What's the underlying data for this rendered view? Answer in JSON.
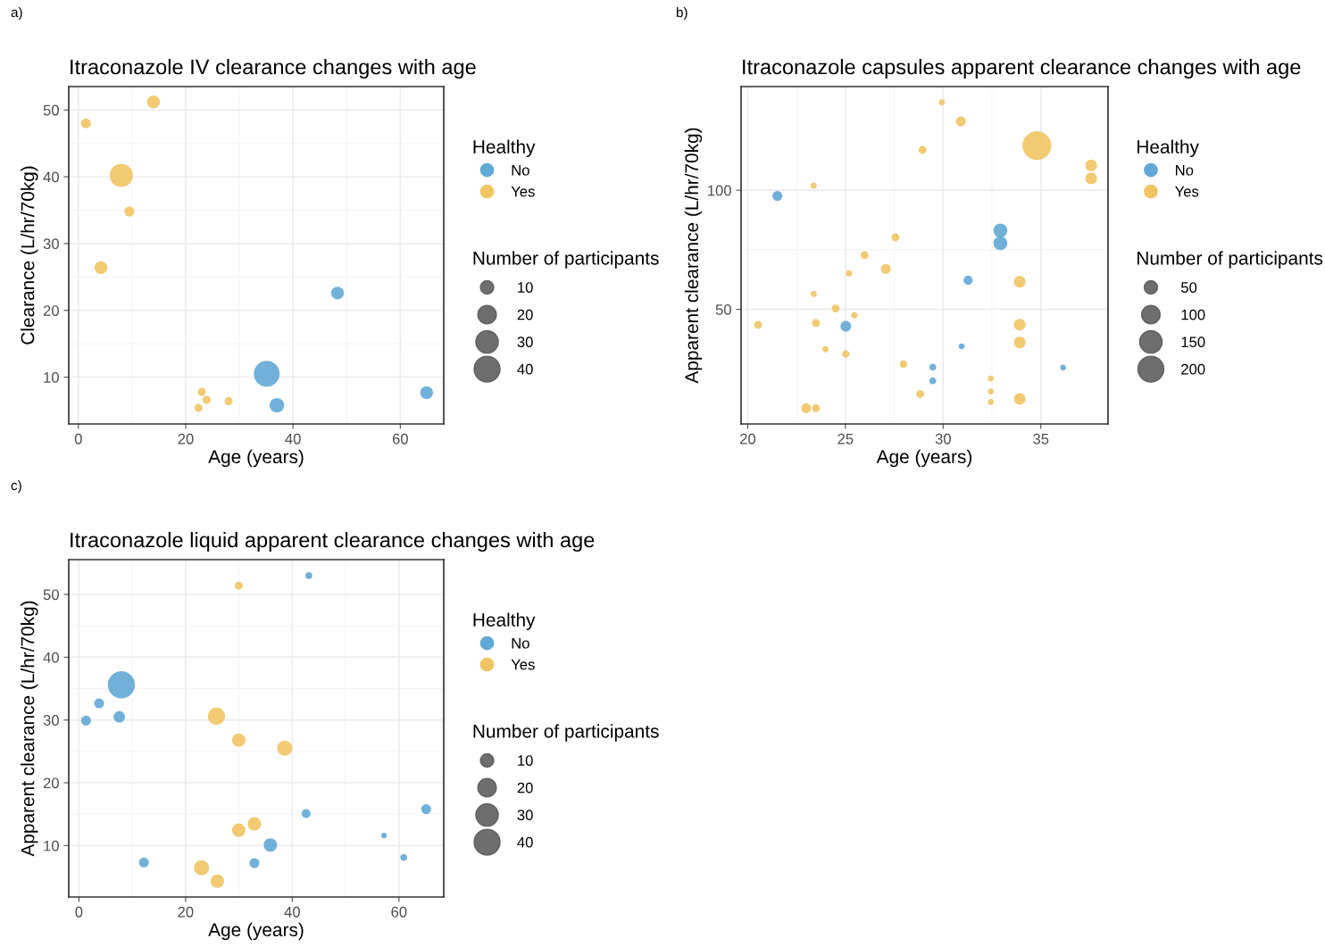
{
  "chart_data": [
    {
      "type": "bubble",
      "title": "Itraconazole IV clearance changes with age",
      "xlabel": "Age (years)",
      "ylabel": "Clearance (L/hr/70kg)",
      "legend_title": "Healthy",
      "annotations": [
        "a)",
        "Number of participants"
      ],
      "xlim": [
        -1.8,
        68.1
      ],
      "ylim": [
        3.0,
        53.5
      ],
      "xticks": [
        0,
        20,
        40,
        60
      ],
      "yticks": [
        10,
        20,
        30,
        40,
        50
      ],
      "grid": true,
      "legend": "right",
      "marker": "circle",
      "size_legend": [
        10,
        20,
        30,
        40
      ],
      "series": [
        {
          "name": "No",
          "color": "#62a9d5",
          "x": [
            48.3,
            35.1,
            37.0,
            64.9
          ],
          "values": [
            22.6,
            10.5,
            5.8,
            7.7
          ],
          "sizes": [
            9,
            40,
            12,
            9
          ]
        },
        {
          "name": "Yes",
          "color": "#f0c463",
          "x": [
            1.4,
            14.0,
            8.0,
            9.5,
            4.2,
            23.0,
            23.9,
            22.4,
            28.0
          ],
          "values": [
            48.0,
            51.2,
            40.2,
            34.8,
            26.4,
            7.8,
            6.6,
            5.4,
            6.4
          ],
          "sizes": [
            5,
            9,
            32,
            5,
            9,
            3,
            3,
            3,
            3
          ]
        }
      ]
    },
    {
      "type": "bubble",
      "title": "Itraconazole capsules apparent clearance changes with age",
      "xlabel": "Age (years)",
      "ylabel": "Apparent clearance (L/hr/70kg)",
      "legend_title": "Healthy",
      "annotations": [
        "b)",
        "Number of participants"
      ],
      "xlim": [
        19.66,
        38.44
      ],
      "ylim": [
        1.9,
        143.5
      ],
      "xticks": [
        20,
        25,
        30,
        35
      ],
      "yticks": [
        50,
        100
      ],
      "grid": true,
      "legend": "right",
      "marker": "circle",
      "size_legend": [
        50,
        100,
        150,
        200
      ],
      "series": [
        {
          "name": "No",
          "color": "#62a9d5",
          "x": [
            21.52,
            32.93,
            32.93,
            31.28,
            25.02,
            30.95,
            29.47,
            29.47,
            36.14
          ],
          "values": [
            97.6,
            83.1,
            77.75,
            62.25,
            42.9,
            34.5,
            25.75,
            20.0,
            25.6
          ],
          "sizes": [
            25,
            54,
            54,
            20,
            30,
            6,
            10,
            10,
            6
          ]
        },
        {
          "name": "Yes",
          "color": "#f0c463",
          "x": [
            29.94,
            30.91,
            28.95,
            34.8,
            37.58,
            37.58,
            23.38,
            27.56,
            25.98,
            27.07,
            25.18,
            23.38,
            24.5,
            25.46,
            20.53,
            23.49,
            33.92,
            33.92,
            33.92,
            23.98,
            25.02,
            27.97,
            28.83,
            32.44,
            32.44,
            32.44,
            33.92,
            22.99,
            23.49
          ],
          "values": [
            136.9,
            128.9,
            116.9,
            118.75,
            110.4,
            105.0,
            101.9,
            80.25,
            72.75,
            67.0,
            65.1,
            56.5,
            50.4,
            47.5,
            43.5,
            44.25,
            61.6,
            43.6,
            36.1,
            33.25,
            31.25,
            27.0,
            14.5,
            21.0,
            15.5,
            11.1,
            12.4,
            8.5,
            8.5
          ],
          "sizes": [
            7,
            25,
            14,
            250,
            37,
            37,
            7,
            14,
            14,
            25,
            7,
            7,
            14,
            8,
            14,
            14,
            37,
            37,
            37,
            7,
            12,
            12,
            14,
            6,
            6,
            6,
            37,
            25,
            14
          ]
        }
      ]
    },
    {
      "type": "bubble",
      "title": "Itraconazole liquid apparent clearance changes with age",
      "xlabel": "Age (years)",
      "ylabel": "Apparent clearance (L/hr/70kg)",
      "legend_title": "Healthy",
      "annotations": [
        "c)",
        "Number of participants"
      ],
      "xlim": [
        -1.9,
        68.4
      ],
      "ylim": [
        1.8,
        55.55
      ],
      "xticks": [
        0,
        20,
        40,
        60
      ],
      "yticks": [
        10,
        20,
        30,
        40,
        50
      ],
      "grid": true,
      "legend": "right",
      "marker": "circle",
      "size_legend": [
        10,
        20,
        30,
        40
      ],
      "series": [
        {
          "name": "No",
          "color": "#62a9d5",
          "x": [
            43.1,
            7.97,
            3.79,
            1.34,
            7.58,
            12.2,
            32.9,
            35.9,
            42.6,
            65.1,
            57.2,
            60.9
          ],
          "values": [
            53.0,
            35.6,
            32.65,
            29.9,
            30.5,
            7.3,
            7.2,
            10.1,
            15.1,
            15.8,
            11.6,
            8.1
          ],
          "sizes": [
            2,
            44,
            5,
            5,
            7,
            5,
            5,
            10,
            4,
            5,
            1,
            2
          ]
        },
        {
          "name": "Yes",
          "color": "#f0c463",
          "x": [
            29.97,
            25.8,
            29.97,
            38.6,
            32.9,
            29.97,
            23.0,
            25.96
          ],
          "values": [
            51.4,
            30.6,
            26.8,
            25.5,
            13.45,
            12.45,
            6.47,
            4.34
          ],
          "sizes": [
            3,
            17,
            10,
            13,
            10,
            10,
            13,
            10
          ]
        }
      ]
    }
  ]
}
